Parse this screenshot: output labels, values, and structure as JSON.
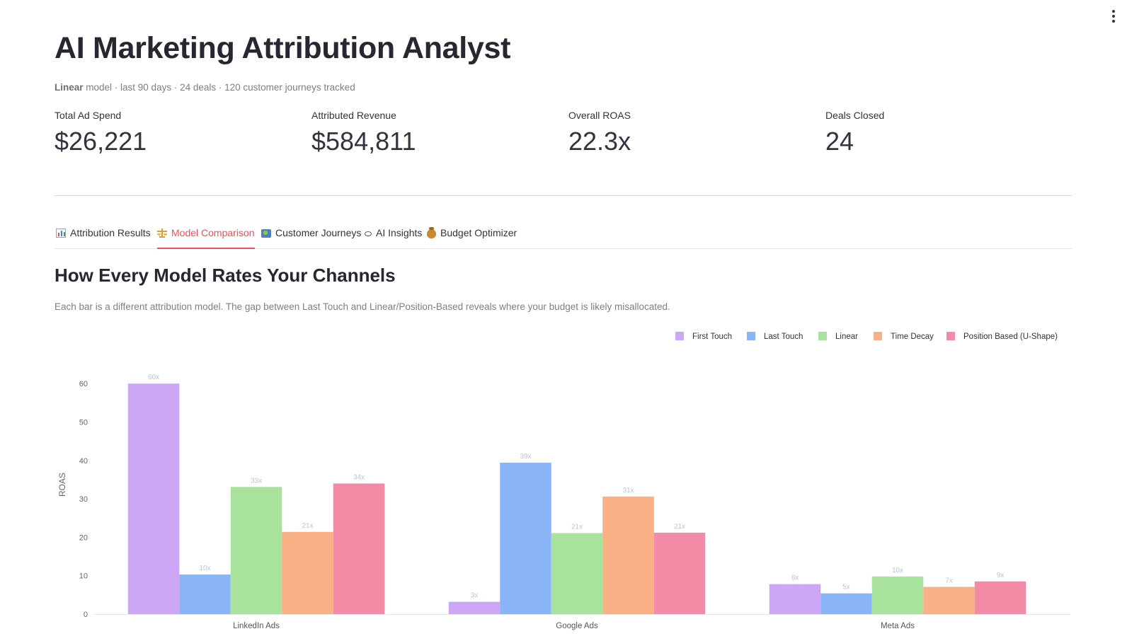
{
  "app": {
    "title": "AI Marketing Attribution Analyst",
    "subtitle_model": "Linear",
    "subtitle_rest": " model · last 90 days · 24 deals · 120 customer journeys tracked"
  },
  "metrics": [
    {
      "label": "Total Ad Spend",
      "value": "$26,221"
    },
    {
      "label": "Attributed Revenue",
      "value": "$584,811"
    },
    {
      "label": "Overall ROAS",
      "value": "22.3x"
    },
    {
      "label": "Deals Closed",
      "value": "24"
    }
  ],
  "tabs": [
    {
      "label": "Attribution Results",
      "icon": "bar-chart-icon"
    },
    {
      "label": "Model Comparison",
      "icon": "scales-icon",
      "active": true
    },
    {
      "label": "Customer Journeys",
      "icon": "map-icon"
    },
    {
      "label": "AI Insights",
      "icon": "eye-icon"
    },
    {
      "label": "Budget Optimizer",
      "icon": "money-bag-icon"
    }
  ],
  "section": {
    "title": "How Every Model Rates Your Channels",
    "description": "Each bar is a different attribution model. The gap between Last Touch and Linear/Position-Based reveals where your budget is likely misallocated."
  },
  "chart_data": {
    "type": "bar",
    "categories": [
      "LinkedIn Ads",
      "Google Ads",
      "Meta Ads"
    ],
    "ylabel": "ROAS",
    "xlabel": "",
    "ylim": [
      0,
      65
    ],
    "yticks": [
      0,
      10,
      20,
      30,
      40,
      50,
      60
    ],
    "legend_position": "top-right",
    "grid": false,
    "series": [
      {
        "name": "First Touch",
        "color": "#cba7f5",
        "values": [
          60,
          3.2,
          7.8
        ],
        "labels": [
          "60x",
          "3x",
          "8x"
        ]
      },
      {
        "name": "Last Touch",
        "color": "#8ab4f8",
        "values": [
          10.3,
          39.4,
          5.4
        ],
        "labels": [
          "10x",
          "39x",
          "5x"
        ]
      },
      {
        "name": "Linear",
        "color": "#a8e29c",
        "values": [
          33.1,
          21.1,
          9.8
        ],
        "labels": [
          "33x",
          "21x",
          "10x"
        ]
      },
      {
        "name": "Time Decay",
        "color": "#f8b084",
        "values": [
          21.4,
          30.6,
          7.1
        ],
        "labels": [
          "21x",
          "31x",
          "7x"
        ]
      },
      {
        "name": "Position Based (U-Shape)",
        "color": "#f48ba6",
        "values": [
          34,
          21.2,
          8.5
        ],
        "labels": [
          "34x",
          "21x",
          "9x"
        ]
      }
    ]
  }
}
